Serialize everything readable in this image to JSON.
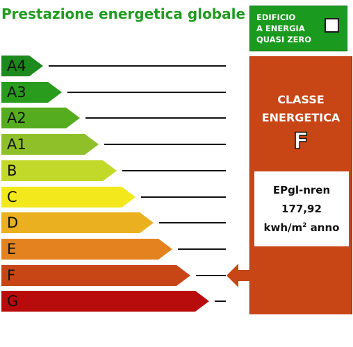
{
  "header": {
    "title": "Prestazione energetica globale"
  },
  "nzeb": {
    "label": "EDIFICIO\nA ENERGIA\nQUASI ZERO",
    "checked": false
  },
  "scale": {
    "classes": [
      {
        "label": "A4",
        "color": "#1c8a1c"
      },
      {
        "label": "A3",
        "color": "#2a9c1d"
      },
      {
        "label": "A2",
        "color": "#56ac1f"
      },
      {
        "label": "A1",
        "color": "#8fc02a"
      },
      {
        "label": "B",
        "color": "#c3d92a"
      },
      {
        "label": "C",
        "color": "#f3e81c"
      },
      {
        "label": "D",
        "color": "#eab01f"
      },
      {
        "label": "E",
        "color": "#e3821e"
      },
      {
        "label": "F",
        "color": "#c84516"
      },
      {
        "label": "G",
        "color": "#b80c0c"
      }
    ],
    "selected": "F"
  },
  "result": {
    "heading_line1": "CLASSE",
    "heading_line2": "ENERGETICA",
    "class": "F",
    "index_label": "EPgl-nren",
    "index_value": "177,92",
    "unit_prefix": "kwh/m",
    "unit_exp": "2",
    "unit_suffix": " anno",
    "color": "#c84516"
  }
}
